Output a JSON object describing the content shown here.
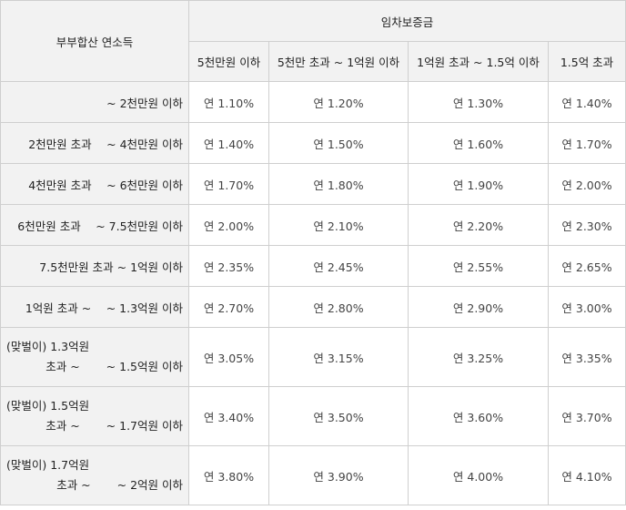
{
  "table": {
    "corner_label": "부부합산 연소득",
    "group_label": "임차보증금",
    "columns": [
      "5천만원 이하",
      "5천만 초과 ~ 1억원 이하",
      "1억원 초과 ~ 1.5억 이하",
      "1.5억 초과"
    ],
    "rows": [
      {
        "label": "~ 2천만원 이하",
        "values": [
          "연 1.10%",
          "연 1.20%",
          "연 1.30%",
          "연 1.40%"
        ]
      },
      {
        "label": "2천만원 초과 　~ 4천만원 이하",
        "values": [
          "연 1.40%",
          "연 1.50%",
          "연 1.60%",
          "연 1.70%"
        ]
      },
      {
        "label": "4천만원 초과 　~ 6천만원 이하",
        "values": [
          "연 1.70%",
          "연 1.80%",
          "연 1.90%",
          "연 2.00%"
        ]
      },
      {
        "label": "6천만원 초과 　~ 7.5천만원 이하",
        "values": [
          "연 2.00%",
          "연 2.10%",
          "연 2.20%",
          "연 2.30%"
        ]
      },
      {
        "label": "7.5천만원 초과 ~ 1억원 이하",
        "values": [
          "연 2.35%",
          "연 2.45%",
          "연 2.55%",
          "연 2.65%"
        ]
      },
      {
        "label": "1억원 초과 ~ 　~ 1.3억원 이하",
        "values": [
          "연 2.70%",
          "연 2.80%",
          "연 2.90%",
          "연 3.00%"
        ]
      },
      {
        "label_line1": "(맞벌이) 1.3억원",
        "label_line2": "초과 ~ 　　~ 1.5억원 이하",
        "values": [
          "연 3.05%",
          "연 3.15%",
          "연 3.25%",
          "연 3.35%"
        ]
      },
      {
        "label_line1": "(맞벌이) 1.5억원",
        "label_line2": "초과 ~ 　　~ 1.7억원 이하",
        "values": [
          "연 3.40%",
          "연 3.50%",
          "연 3.60%",
          "연 3.70%"
        ]
      },
      {
        "label_line1": "(맞벌이) 1.7억원",
        "label_line2": "초과 ~ 　　~ 2억원 이하",
        "values": [
          "연 3.80%",
          "연 3.90%",
          "연 4.00%",
          "연 4.10%"
        ]
      }
    ]
  }
}
